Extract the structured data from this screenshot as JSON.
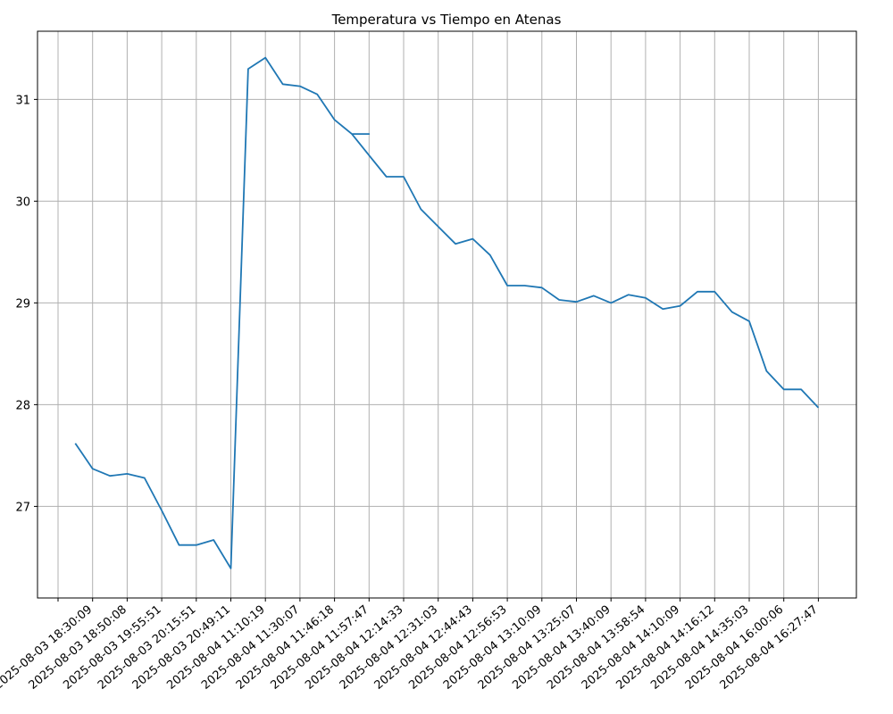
{
  "chart_data": {
    "type": "line",
    "title": "Temperatura vs Tiempo en Atenas",
    "xlabel": "",
    "ylabel": "",
    "grid": true,
    "ylim": [
      26.1,
      31.67
    ],
    "y_ticks": [
      27,
      28,
      29,
      30,
      31
    ],
    "x_tick_labels": [
      "",
      "2025-08-03 18:30:09",
      "2025-08-03 18:50:08",
      "2025-08-03 19:55:51",
      "2025-08-03 20:15:51",
      "2025-08-03 20:49:11",
      "2025-08-04 11:10:19",
      "2025-08-04 11:30:07",
      "2025-08-04 11:46:18",
      "2025-08-04 11:57:47",
      "2025-08-04 12:14:33",
      "2025-08-04 12:31:03",
      "2025-08-04 12:44:43",
      "2025-08-04 12:56:53",
      "2025-08-04 13:10:09",
      "2025-08-04 13:25:07",
      "2025-08-04 13:40:09",
      "2025-08-04 13:58:54",
      "2025-08-04 14:10:09",
      "2025-08-04 14:16:12",
      "2025-08-04 14:35:03",
      "2025-08-04 16:00:06",
      "2025-08-04 16:27:47"
    ],
    "series": [
      {
        "color": "#1f77b4",
        "points": [
          [
            0.5,
            27.62
          ],
          [
            1.0,
            27.37
          ],
          [
            1.5,
            27.3
          ],
          [
            2.0,
            27.32
          ],
          [
            2.5,
            27.28
          ],
          [
            3.0,
            26.96
          ],
          [
            3.5,
            26.62
          ],
          [
            4.0,
            26.62
          ],
          [
            4.5,
            26.67
          ],
          [
            5.0,
            26.39
          ],
          [
            5.5,
            31.3
          ],
          [
            6.0,
            31.41
          ],
          [
            6.5,
            31.15
          ],
          [
            7.0,
            31.13
          ],
          [
            7.5,
            31.05
          ],
          [
            8.0,
            30.8
          ],
          [
            8.5,
            30.66
          ],
          [
            9.0,
            30.66
          ],
          [
            8.5,
            30.66
          ],
          [
            9.0,
            30.45
          ],
          [
            9.5,
            30.24
          ],
          [
            10.0,
            30.24
          ],
          [
            10.5,
            29.92
          ],
          [
            11.0,
            29.75
          ],
          [
            11.5,
            29.58
          ],
          [
            12.0,
            29.63
          ],
          [
            12.5,
            29.47
          ],
          [
            13.0,
            29.17
          ],
          [
            13.5,
            29.17
          ],
          [
            14.0,
            29.15
          ],
          [
            14.5,
            29.03
          ],
          [
            15.0,
            29.01
          ],
          [
            15.5,
            29.07
          ],
          [
            16.0,
            29.0
          ],
          [
            16.5,
            29.08
          ],
          [
            17.0,
            29.05
          ],
          [
            17.5,
            28.94
          ],
          [
            18.0,
            28.97
          ],
          [
            18.5,
            29.11
          ],
          [
            19.0,
            29.11
          ],
          [
            19.5,
            28.91
          ],
          [
            20.0,
            28.82
          ],
          [
            20.5,
            28.33
          ],
          [
            21.0,
            28.15
          ],
          [
            21.5,
            28.15
          ],
          [
            22.0,
            27.97
          ]
        ]
      }
    ]
  }
}
